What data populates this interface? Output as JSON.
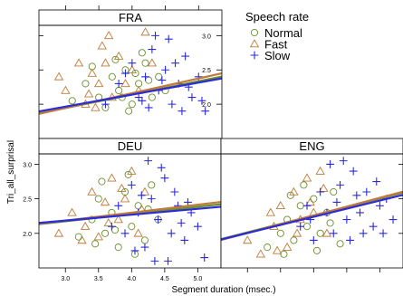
{
  "chart_data": {
    "type": "scatter",
    "xlabel": "Segment duration (msec.)",
    "ylabel": "Tri_all_surprisal",
    "x_ticks": [
      "3.0",
      "3.5",
      "4.0",
      "4.5",
      "5.0"
    ],
    "y_ticks": [
      "2.0",
      "2.5",
      "3.0"
    ],
    "xlim": [
      2.6,
      5.35
    ],
    "ylim": [
      1.5,
      3.15
    ],
    "legend": {
      "title": "Speech rate",
      "placement": "top-right",
      "entries": [
        {
          "name": "Normal",
          "marker": "circle",
          "color": "#6a8f2d"
        },
        {
          "name": "Fast",
          "marker": "triangle",
          "color": "#c07a3a"
        },
        {
          "name": "Slow",
          "marker": "plus",
          "color": "#2b2bdc"
        }
      ]
    },
    "panels": [
      {
        "name": "FRA",
        "regression": [
          {
            "series": "Normal",
            "intercept": 1.36,
            "slope": 0.195
          },
          {
            "series": "Fast",
            "intercept": 1.3,
            "slope": 0.215
          },
          {
            "series": "Slow",
            "intercept": 1.44,
            "slope": 0.175
          }
        ],
        "points": {
          "Normal": [
            [
              3.1,
              2.05
            ],
            [
              3.3,
              2.3
            ],
            [
              3.5,
              2.1
            ],
            [
              3.6,
              1.95
            ],
            [
              3.7,
              2.4
            ],
            [
              3.8,
              2.2
            ],
            [
              3.9,
              2.5
            ],
            [
              4.0,
              2.0
            ],
            [
              4.1,
              2.3
            ],
            [
              4.2,
              2.6
            ],
            [
              4.3,
              2.1
            ],
            [
              4.4,
              2.4
            ],
            [
              4.5,
              2.2
            ],
            [
              3.4,
              2.55
            ],
            [
              3.95,
              1.9
            ],
            [
              4.15,
              2.75
            ],
            [
              4.05,
              2.45
            ],
            [
              3.75,
              2.65
            ],
            [
              3.85,
              2.1
            ],
            [
              4.25,
              2.35
            ]
          ],
          "Fast": [
            [
              2.9,
              2.4
            ],
            [
              3.0,
              2.2
            ],
            [
              3.2,
              2.6
            ],
            [
              3.3,
              2.0
            ],
            [
              3.4,
              2.45
            ],
            [
              3.5,
              2.3
            ],
            [
              3.6,
              2.6
            ],
            [
              3.7,
              2.1
            ],
            [
              3.8,
              2.7
            ],
            [
              3.9,
              2.3
            ],
            [
              4.0,
              2.5
            ],
            [
              4.1,
              2.2
            ],
            [
              3.55,
              2.85
            ],
            [
              3.65,
              3.0
            ],
            [
              4.2,
              3.05
            ],
            [
              3.35,
              2.15
            ],
            [
              4.3,
              2.6
            ],
            [
              3.45,
              1.95
            ]
          ],
          "Slow": [
            [
              3.6,
              2.0
            ],
            [
              3.8,
              2.3
            ],
            [
              4.0,
              2.6
            ],
            [
              4.1,
              2.1
            ],
            [
              4.2,
              2.4
            ],
            [
              4.3,
              2.8
            ],
            [
              4.4,
              2.2
            ],
            [
              4.5,
              2.5
            ],
            [
              4.6,
              2.0
            ],
            [
              4.7,
              2.3
            ],
            [
              4.8,
              2.7
            ],
            [
              4.9,
              2.1
            ],
            [
              5.0,
              2.4
            ],
            [
              5.1,
              1.9
            ],
            [
              4.35,
              3.0
            ],
            [
              4.55,
              2.95
            ],
            [
              4.75,
              1.9
            ],
            [
              4.15,
              2.05
            ],
            [
              4.45,
              2.35
            ],
            [
              4.65,
              2.6
            ],
            [
              4.85,
              2.25
            ],
            [
              3.9,
              2.45
            ],
            [
              5.05,
              2.05
            ],
            [
              4.25,
              1.95
            ]
          ]
        }
      },
      {
        "name": "DEU",
        "regression": [
          {
            "series": "Normal",
            "intercept": 1.86,
            "slope": 0.105
          },
          {
            "series": "Fast",
            "intercept": 1.84,
            "slope": 0.115
          },
          {
            "series": "Slow",
            "intercept": 1.93,
            "slope": 0.085
          }
        ],
        "points": {
          "Normal": [
            [
              3.2,
              1.95
            ],
            [
              3.4,
              2.2
            ],
            [
              3.5,
              2.5
            ],
            [
              3.6,
              2.0
            ],
            [
              3.7,
              2.3
            ],
            [
              3.8,
              1.8
            ],
            [
              3.9,
              2.6
            ],
            [
              4.0,
              2.1
            ],
            [
              4.1,
              2.4
            ],
            [
              4.2,
              1.9
            ],
            [
              4.3,
              2.7
            ],
            [
              4.4,
              2.2
            ],
            [
              3.55,
              2.75
            ],
            [
              3.75,
              2.05
            ],
            [
              3.95,
              2.85
            ],
            [
              4.05,
              1.7
            ],
            [
              4.25,
              2.35
            ],
            [
              3.45,
              1.85
            ]
          ],
          "Fast": [
            [
              2.9,
              2.0
            ],
            [
              3.1,
              2.3
            ],
            [
              3.3,
              2.1
            ],
            [
              3.4,
              2.6
            ],
            [
              3.5,
              1.95
            ],
            [
              3.6,
              2.45
            ],
            [
              3.7,
              2.8
            ],
            [
              3.8,
              2.2
            ],
            [
              3.9,
              2.5
            ],
            [
              4.0,
              2.9
            ],
            [
              4.1,
              2.0
            ],
            [
              4.2,
              2.6
            ],
            [
              3.25,
              1.9
            ],
            [
              3.65,
              2.15
            ],
            [
              3.85,
              2.65
            ],
            [
              4.15,
              2.35
            ]
          ],
          "Slow": [
            [
              3.7,
              2.1
            ],
            [
              3.8,
              2.4
            ],
            [
              3.9,
              2.0
            ],
            [
              4.0,
              2.7
            ],
            [
              4.1,
              2.3
            ],
            [
              4.2,
              1.8
            ],
            [
              4.3,
              2.5
            ],
            [
              4.4,
              2.2
            ],
            [
              4.5,
              2.8
            ],
            [
              4.6,
              2.0
            ],
            [
              4.7,
              2.4
            ],
            [
              4.8,
              1.9
            ],
            [
              4.9,
              2.3
            ],
            [
              5.0,
              2.1
            ],
            [
              5.1,
              1.65
            ],
            [
              4.35,
              1.6
            ],
            [
              4.55,
              1.6
            ],
            [
              4.45,
              2.95
            ],
            [
              4.25,
              3.05
            ],
            [
              4.65,
              2.6
            ],
            [
              4.75,
              2.15
            ],
            [
              4.05,
              1.75
            ],
            [
              4.15,
              2.55
            ],
            [
              4.85,
              2.45
            ]
          ]
        }
      },
      {
        "name": "ENG",
        "regression": [
          {
            "series": "Normal",
            "intercept": 1.28,
            "slope": 0.245
          },
          {
            "series": "Fast",
            "intercept": 1.24,
            "slope": 0.255
          },
          {
            "series": "Slow",
            "intercept": 1.3,
            "slope": 0.235
          }
        ],
        "points": {
          "Normal": [
            [
              3.3,
              1.8
            ],
            [
              3.5,
              2.0
            ],
            [
              3.6,
              2.2
            ],
            [
              3.7,
              1.9
            ],
            [
              3.8,
              2.4
            ],
            [
              3.9,
              2.1
            ],
            [
              4.0,
              2.5
            ],
            [
              4.1,
              2.0
            ],
            [
              4.2,
              2.3
            ],
            [
              4.3,
              2.6
            ],
            [
              4.4,
              1.85
            ],
            [
              3.55,
              1.7
            ],
            [
              3.85,
              2.7
            ],
            [
              4.05,
              1.75
            ],
            [
              4.25,
              2.15
            ],
            [
              3.65,
              2.55
            ]
          ],
          "Fast": [
            [
              3.0,
              1.9
            ],
            [
              3.2,
              1.7
            ],
            [
              3.4,
              2.1
            ],
            [
              3.5,
              2.4
            ],
            [
              3.6,
              1.8
            ],
            [
              3.7,
              2.6
            ],
            [
              3.8,
              2.2
            ],
            [
              3.9,
              2.8
            ],
            [
              4.0,
              2.3
            ],
            [
              4.1,
              2.9
            ],
            [
              4.2,
              2.0
            ],
            [
              3.45,
              1.75
            ],
            [
              3.75,
              2.0
            ],
            [
              3.95,
              2.45
            ],
            [
              4.15,
              2.65
            ],
            [
              3.35,
              2.3
            ]
          ],
          "Slow": [
            [
              3.8,
              2.1
            ],
            [
              3.9,
              2.4
            ],
            [
              4.0,
              1.9
            ],
            [
              4.1,
              2.6
            ],
            [
              4.2,
              2.3
            ],
            [
              4.3,
              2.0
            ],
            [
              4.4,
              2.7
            ],
            [
              4.5,
              2.2
            ],
            [
              4.6,
              2.9
            ],
            [
              4.7,
              2.3
            ],
            [
              4.8,
              2.6
            ],
            [
              4.9,
              2.1
            ],
            [
              5.0,
              2.4
            ],
            [
              5.1,
              2.5
            ],
            [
              5.2,
              2.2
            ],
            [
              4.45,
              3.05
            ],
            [
              4.25,
              3.0
            ],
            [
              4.55,
              1.9
            ],
            [
              4.75,
              2.0
            ],
            [
              4.95,
              2.75
            ],
            [
              4.35,
              2.45
            ],
            [
              4.65,
              2.55
            ],
            [
              3.95,
              2.2
            ],
            [
              5.05,
              2.0
            ]
          ]
        }
      }
    ]
  }
}
